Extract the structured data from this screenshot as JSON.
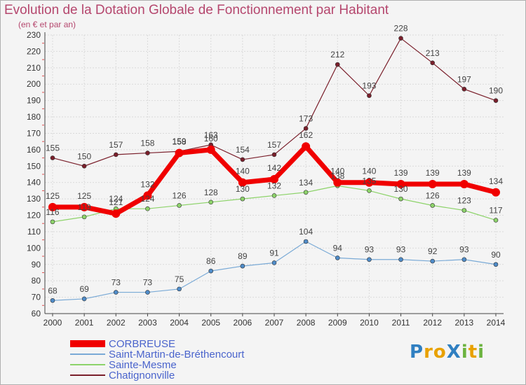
{
  "title": "Evolution de la Dotation Globale de Fonctionnement par Habitant",
  "subtitle": "(en € et par an)",
  "logo": {
    "text": "ProXiti",
    "letters": [
      {
        "ch": "P",
        "color": "#2f7fc1"
      },
      {
        "ch": "r",
        "color": "#e8a100"
      },
      {
        "ch": "o",
        "color": "#e8a100"
      },
      {
        "ch": "X",
        "color": "#2f7fc1"
      },
      {
        "ch": "i",
        "color": "#6cb33f"
      },
      {
        "ch": "t",
        "color": "#e8a100"
      },
      {
        "ch": "i",
        "color": "#6cb33f"
      }
    ]
  },
  "chart_data": {
    "type": "line",
    "x": [
      "2000",
      "2001",
      "2002",
      "2003",
      "2004",
      "2005",
      "2006",
      "2007",
      "2008",
      "2009",
      "2010",
      "2011",
      "2012",
      "2013",
      "2014"
    ],
    "ylim": [
      60,
      230
    ],
    "yticks": [
      60,
      70,
      80,
      90,
      100,
      110,
      120,
      130,
      140,
      150,
      160,
      170,
      180,
      190,
      200,
      210,
      220,
      230
    ],
    "grid": true,
    "legend_position": "bottom-left",
    "series": [
      {
        "name": "Chatignonville",
        "color": "#7a1f2b",
        "point": "#7a1f2b",
        "width": 1.2,
        "radius": 3,
        "values": [
          155,
          150,
          157,
          158,
          159,
          163,
          154,
          157,
          173,
          212,
          193,
          228,
          213,
          197,
          190
        ]
      },
      {
        "name": "Sainte-Mesme",
        "color": "#8dd36a",
        "point": "#8dd36a",
        "width": 1.2,
        "radius": 3,
        "values": [
          116,
          119,
          124,
          124,
          126,
          128,
          130,
          132,
          134,
          138,
          135,
          130,
          126,
          123,
          117
        ]
      },
      {
        "name": "Saint-Martin-de-Bréthencourt",
        "color": "#7aaad6",
        "point": "#4f8cc9",
        "width": 1.2,
        "radius": 3,
        "values": [
          68,
          69,
          73,
          73,
          75,
          86,
          89,
          91,
          104,
          94,
          93,
          93,
          92,
          93,
          90
        ]
      },
      {
        "name": "CORBREUSE",
        "color": "#f00000",
        "point": "#f00000",
        "width": 7,
        "radius": 6,
        "values": [
          125,
          125,
          121,
          132,
          158,
          160,
          140,
          142,
          162,
          140,
          140,
          139,
          139,
          139,
          134
        ]
      }
    ],
    "value_labels": [
      {
        "series": "Chatignonville",
        "labels": [
          "155",
          "150",
          "157",
          "158",
          "159",
          "163",
          "154",
          "157",
          "173",
          "212",
          "193",
          "228",
          "213",
          "197",
          "190"
        ]
      },
      {
        "series": "Sainte-Mesme",
        "labels": [
          "116",
          "119",
          "124",
          "124",
          "126",
          "128",
          "130",
          "132",
          "134",
          "138",
          "135",
          "130",
          "126",
          "123",
          "117"
        ]
      },
      {
        "series": "Saint-Martin-de-Bréthencourt",
        "labels": [
          "68",
          "69",
          "73",
          "73",
          "75",
          "86",
          "89",
          "91",
          "104",
          "94",
          "93",
          "93",
          "92",
          "93",
          "90"
        ]
      },
      {
        "series": "CORBREUSE",
        "labels": [
          "125",
          "125",
          "121",
          "132",
          "158",
          "160",
          "140",
          "142",
          "162",
          "140",
          "140",
          "139",
          "139",
          "139",
          "134"
        ]
      }
    ],
    "legend": [
      {
        "name": "CORBREUSE",
        "color": "#f00000",
        "thickness": 10
      },
      {
        "name": "Saint-Martin-de-Bréthencourt",
        "color": "#7aaad6",
        "thickness": 2
      },
      {
        "name": "Sainte-Mesme",
        "color": "#8dd36a",
        "thickness": 2
      },
      {
        "name": "Chatignonville",
        "color": "#7a1f2b",
        "thickness": 2
      }
    ]
  }
}
